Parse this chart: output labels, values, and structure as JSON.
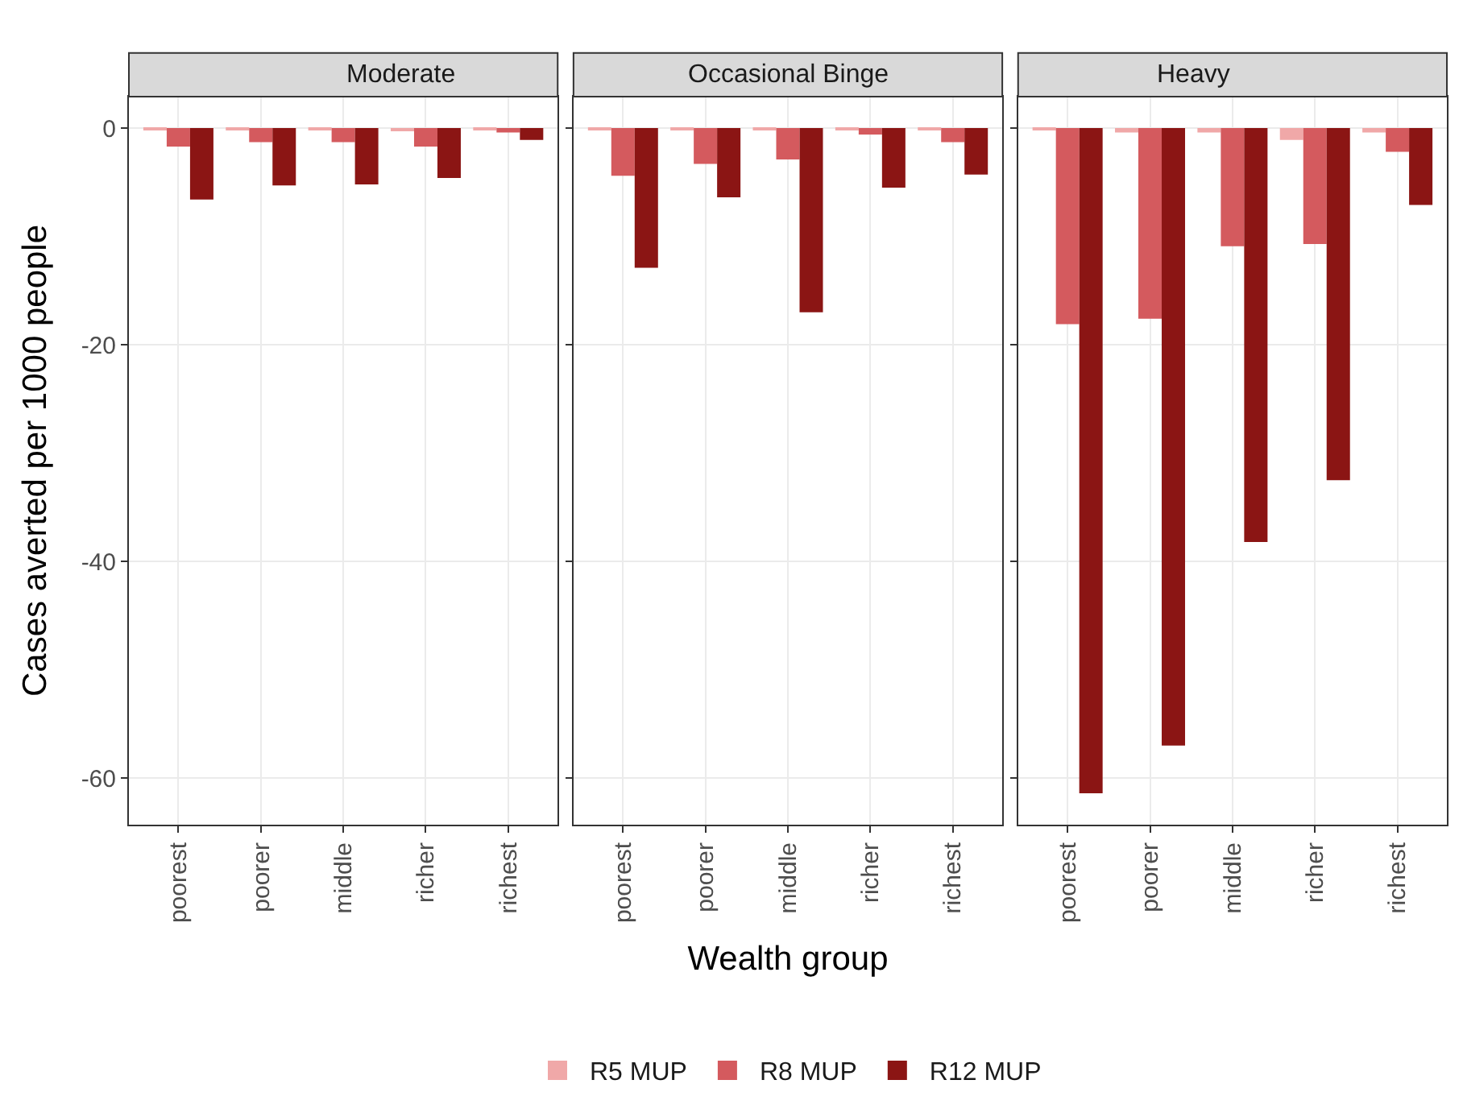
{
  "chart_data": [
    {
      "type": "bar",
      "title": "Moderate",
      "ylabel": "Cases averted per 1000 people",
      "categories": [
        "poorest",
        "poorer",
        "middle",
        "richer",
        "richest"
      ],
      "ylim": [
        -64.3,
        2.9
      ],
      "yticks": [
        0,
        -20,
        -40,
        -60
      ],
      "grid": true,
      "legend": "bottom",
      "series": [
        {
          "name": "R5 MUP",
          "color": "#f0a8a8",
          "values": [
            -0.1,
            -0.1,
            -0.1,
            -0.3,
            -0.1
          ]
        },
        {
          "name": "R8 MUP",
          "color": "#d45a5e",
          "values": [
            -1.7,
            -1.3,
            -1.3,
            -1.7,
            -0.4
          ]
        },
        {
          "name": "R12 MUP",
          "color": "#8b1514",
          "values": [
            -6.6,
            -5.3,
            -5.2,
            -4.6,
            -1.1
          ]
        }
      ]
    },
    {
      "type": "bar",
      "title": "Occasional Binge",
      "xlabel": "Wealth group",
      "categories": [
        "poorest",
        "poorer",
        "middle",
        "richer",
        "richest"
      ],
      "ylim": [
        -64.3,
        2.9
      ],
      "yticks": [
        0,
        -20,
        -40,
        -60
      ],
      "grid": true,
      "tick_labels": "x",
      "series": [
        {
          "color": "#f0a8a8",
          "values": [
            -0.2,
            -0.1,
            -0.2,
            -0.1,
            -0.1
          ]
        },
        {
          "color": "#d45a5e",
          "values": [
            -4.4,
            -3.3,
            -2.9,
            -0.6,
            -1.3
          ]
        },
        {
          "color": "#8b1514",
          "values": [
            -12.9,
            -6.4,
            -17.0,
            -5.5,
            -4.3
          ]
        }
      ]
    },
    {
      "type": "bar",
      "title": "Heavy",
      "categories": [
        "poorest",
        "poorer",
        "middle",
        "richer",
        "richest"
      ],
      "ylim": [
        -64.3,
        2.9
      ],
      "yticks": [
        0,
        -20,
        -40,
        -60
      ],
      "grid": true,
      "tick_labels": "x",
      "series": [
        {
          "color": "#f0a8a8",
          "values": [
            -0.2,
            -0.4,
            -0.4,
            -1.1,
            -0.4
          ]
        },
        {
          "color": "#d45a5e",
          "values": [
            -18.1,
            -17.6,
            -10.9,
            -10.7,
            -2.2
          ]
        },
        {
          "color": "#8b1514",
          "values": [
            -61.4,
            -57.0,
            -38.2,
            -32.5,
            -7.1
          ]
        }
      ]
    }
  ]
}
